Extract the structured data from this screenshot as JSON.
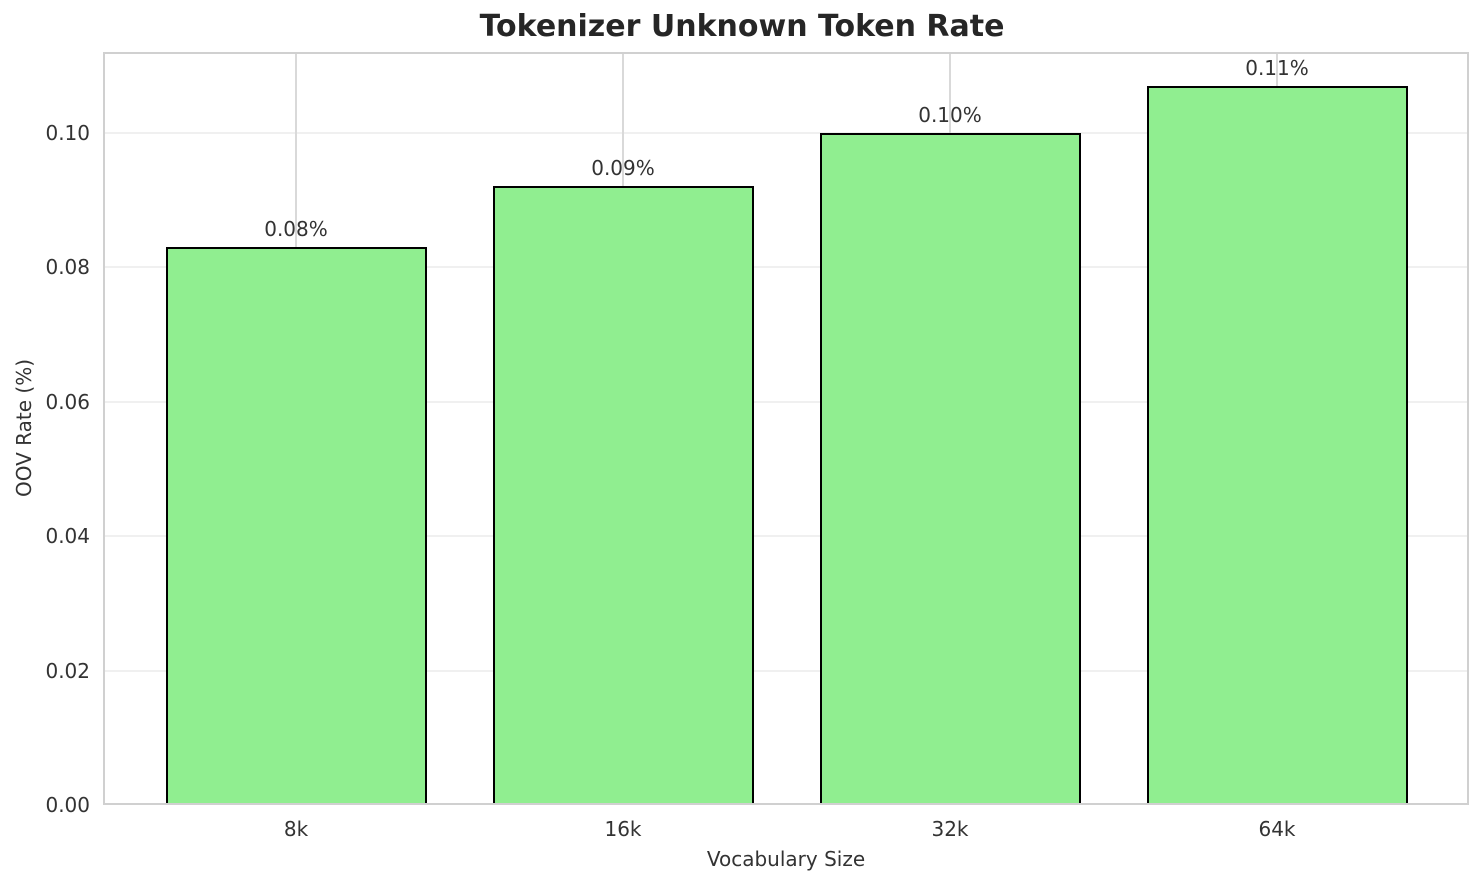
{
  "chart_data": {
    "type": "bar",
    "title": "Tokenizer Unknown Token Rate",
    "xlabel": "Vocabulary Size",
    "ylabel": "OOV Rate (%)",
    "categories": [
      "8k",
      "16k",
      "32k",
      "64k"
    ],
    "values": [
      0.083,
      0.092,
      0.1,
      0.107
    ],
    "bar_labels": [
      "0.08%",
      "0.09%",
      "0.10%",
      "0.11%"
    ],
    "ylim": [
      0,
      0.112
    ],
    "ytick_values": [
      0,
      0.02,
      0.04,
      0.06,
      0.08,
      0.1
    ],
    "ytick_labels": [
      "0.00",
      "0.02",
      "0.04",
      "0.06",
      "0.08",
      "0.10"
    ],
    "grid": true,
    "legend": false,
    "colors": {
      "bar_fill": "#90EE90",
      "bar_edge": "#000000",
      "grid_horizontal": "#f0f0f0",
      "grid_vertical": "#d9d9d9",
      "spine": "#d0d0d0",
      "text": "#333333",
      "title": "#262626"
    }
  }
}
